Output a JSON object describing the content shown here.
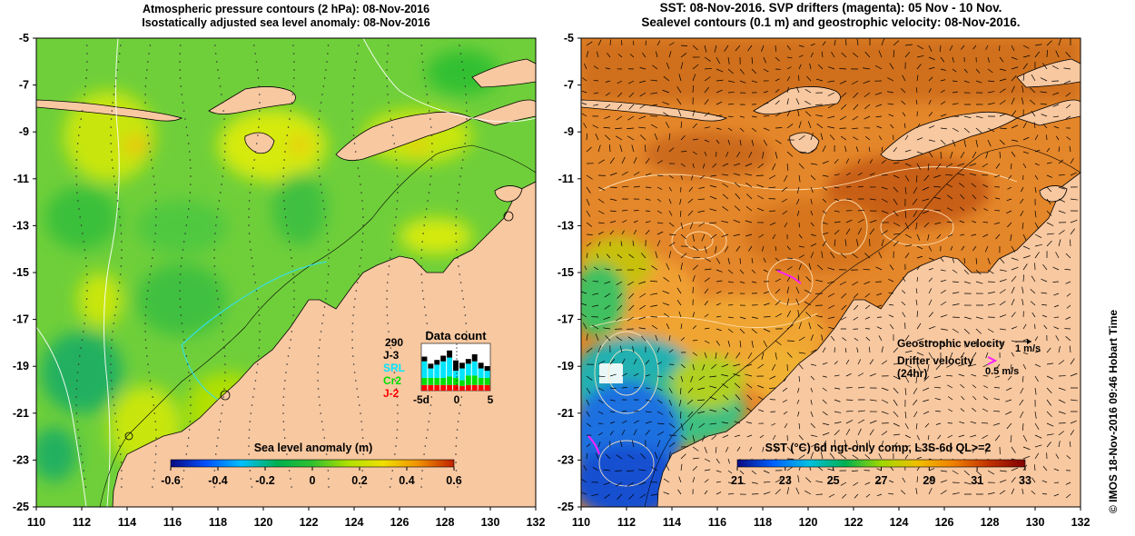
{
  "left_panel": {
    "title_line1": "Atmospheric pressure contours (2 hPa): 08-Nov-2016",
    "title_line2": "Isostatically adjusted sea level anomaly: 08-Nov-2016",
    "colorbar": {
      "title": "Sea level anomaly (m)",
      "ticks": [
        "-0.6",
        "-0.4",
        "-0.2",
        "0",
        "0.2",
        "0.4",
        "0.6"
      ]
    },
    "data_count": {
      "title": "Data count",
      "total": "290",
      "missions": [
        {
          "label": "J-3",
          "color": "#000000"
        },
        {
          "label": "SRL",
          "color": "#00e5ff"
        },
        {
          "label": "Cr2",
          "color": "#00e000"
        },
        {
          "label": "J-2",
          "color": "#ff0000"
        }
      ],
      "axis_labels": [
        "-5d",
        "0",
        "5"
      ],
      "bars": [
        {
          "J-2": 0.12,
          "Cr2": 0.15,
          "SRL": 0.35,
          "J-3": 0.1
        },
        {
          "J-2": 0.12,
          "Cr2": 0.15,
          "SRL": 0.2,
          "J-3": 0.1
        },
        {
          "J-2": 0.12,
          "Cr2": 0.15,
          "SRL": 0.28,
          "J-3": 0.1
        },
        {
          "J-2": 0.12,
          "Cr2": 0.15,
          "SRL": 0.35,
          "J-3": 0.12
        },
        {
          "J-2": 0.12,
          "Cr2": 0.18,
          "SRL": 0.4,
          "J-3": 0.15
        },
        {
          "J-2": 0.12,
          "Cr2": 0.15,
          "SRL": 0.15,
          "J-3": 0.22
        },
        {
          "J-2": 0.1,
          "Cr2": 0.12,
          "SRL": 0.25,
          "J-3": 0.12
        },
        {
          "J-2": 0.12,
          "Cr2": 0.2,
          "SRL": 0.25,
          "J-3": 0.1
        },
        {
          "J-2": 0.12,
          "Cr2": 0.2,
          "SRL": 0.3,
          "J-3": 0.15
        },
        {
          "J-2": 0.12,
          "Cr2": 0.15,
          "SRL": 0.2,
          "J-3": 0.12
        },
        {
          "J-2": 0.12,
          "Cr2": 0.15,
          "SRL": 0.15,
          "J-3": 0.1
        }
      ]
    }
  },
  "right_panel": {
    "title_line1": "SST: 08-Nov-2016. SVP drifters (magenta): 05 Nov - 10 Nov.",
    "title_line2": "Sealevel contours (0.1 m) and geostrophic velocity: 08-Nov-2016.",
    "colorbar": {
      "title": "SST (°C) 6d ngt-only comp, L3S-6d QL>=2",
      "ticks": [
        "21",
        "23",
        "25",
        "27",
        "29",
        "31",
        "33"
      ]
    },
    "legend": {
      "geostrophic_label": "Geostrophic velocity",
      "geostrophic_scale": "1 m/s",
      "drifter_label": "Drifter velocity",
      "drifter_sub": "(24hr)",
      "drifter_scale": "0.5 m/s"
    }
  },
  "axes": {
    "lon_ticks": [
      "110",
      "112",
      "114",
      "116",
      "118",
      "120",
      "122",
      "124",
      "126",
      "128",
      "130",
      "132"
    ],
    "lat_ticks": [
      "-5",
      "-7",
      "-9",
      "-11",
      "-13",
      "-15",
      "-17",
      "-19",
      "-21",
      "-23",
      "-25"
    ],
    "lon_range": [
      110,
      132
    ],
    "lat_range": [
      -25,
      -5
    ]
  },
  "credit": "©  IMOS 18-Nov-2016 09:46 Hobart Time",
  "colors": {
    "land": "#f8c8a0",
    "sla_colormap": [
      "#0a0a80",
      "#0050ff",
      "#00c0ff",
      "#00b050",
      "#30c030",
      "#b0e000",
      "#f0e000",
      "#f09000",
      "#c02000"
    ],
    "sst_colormap": [
      "#0a0a80",
      "#0060ff",
      "#00c0e0",
      "#00b050",
      "#a0d800",
      "#f0c000",
      "#f08000",
      "#c03000",
      "#800000"
    ],
    "sst_warm": "#e07a20"
  }
}
